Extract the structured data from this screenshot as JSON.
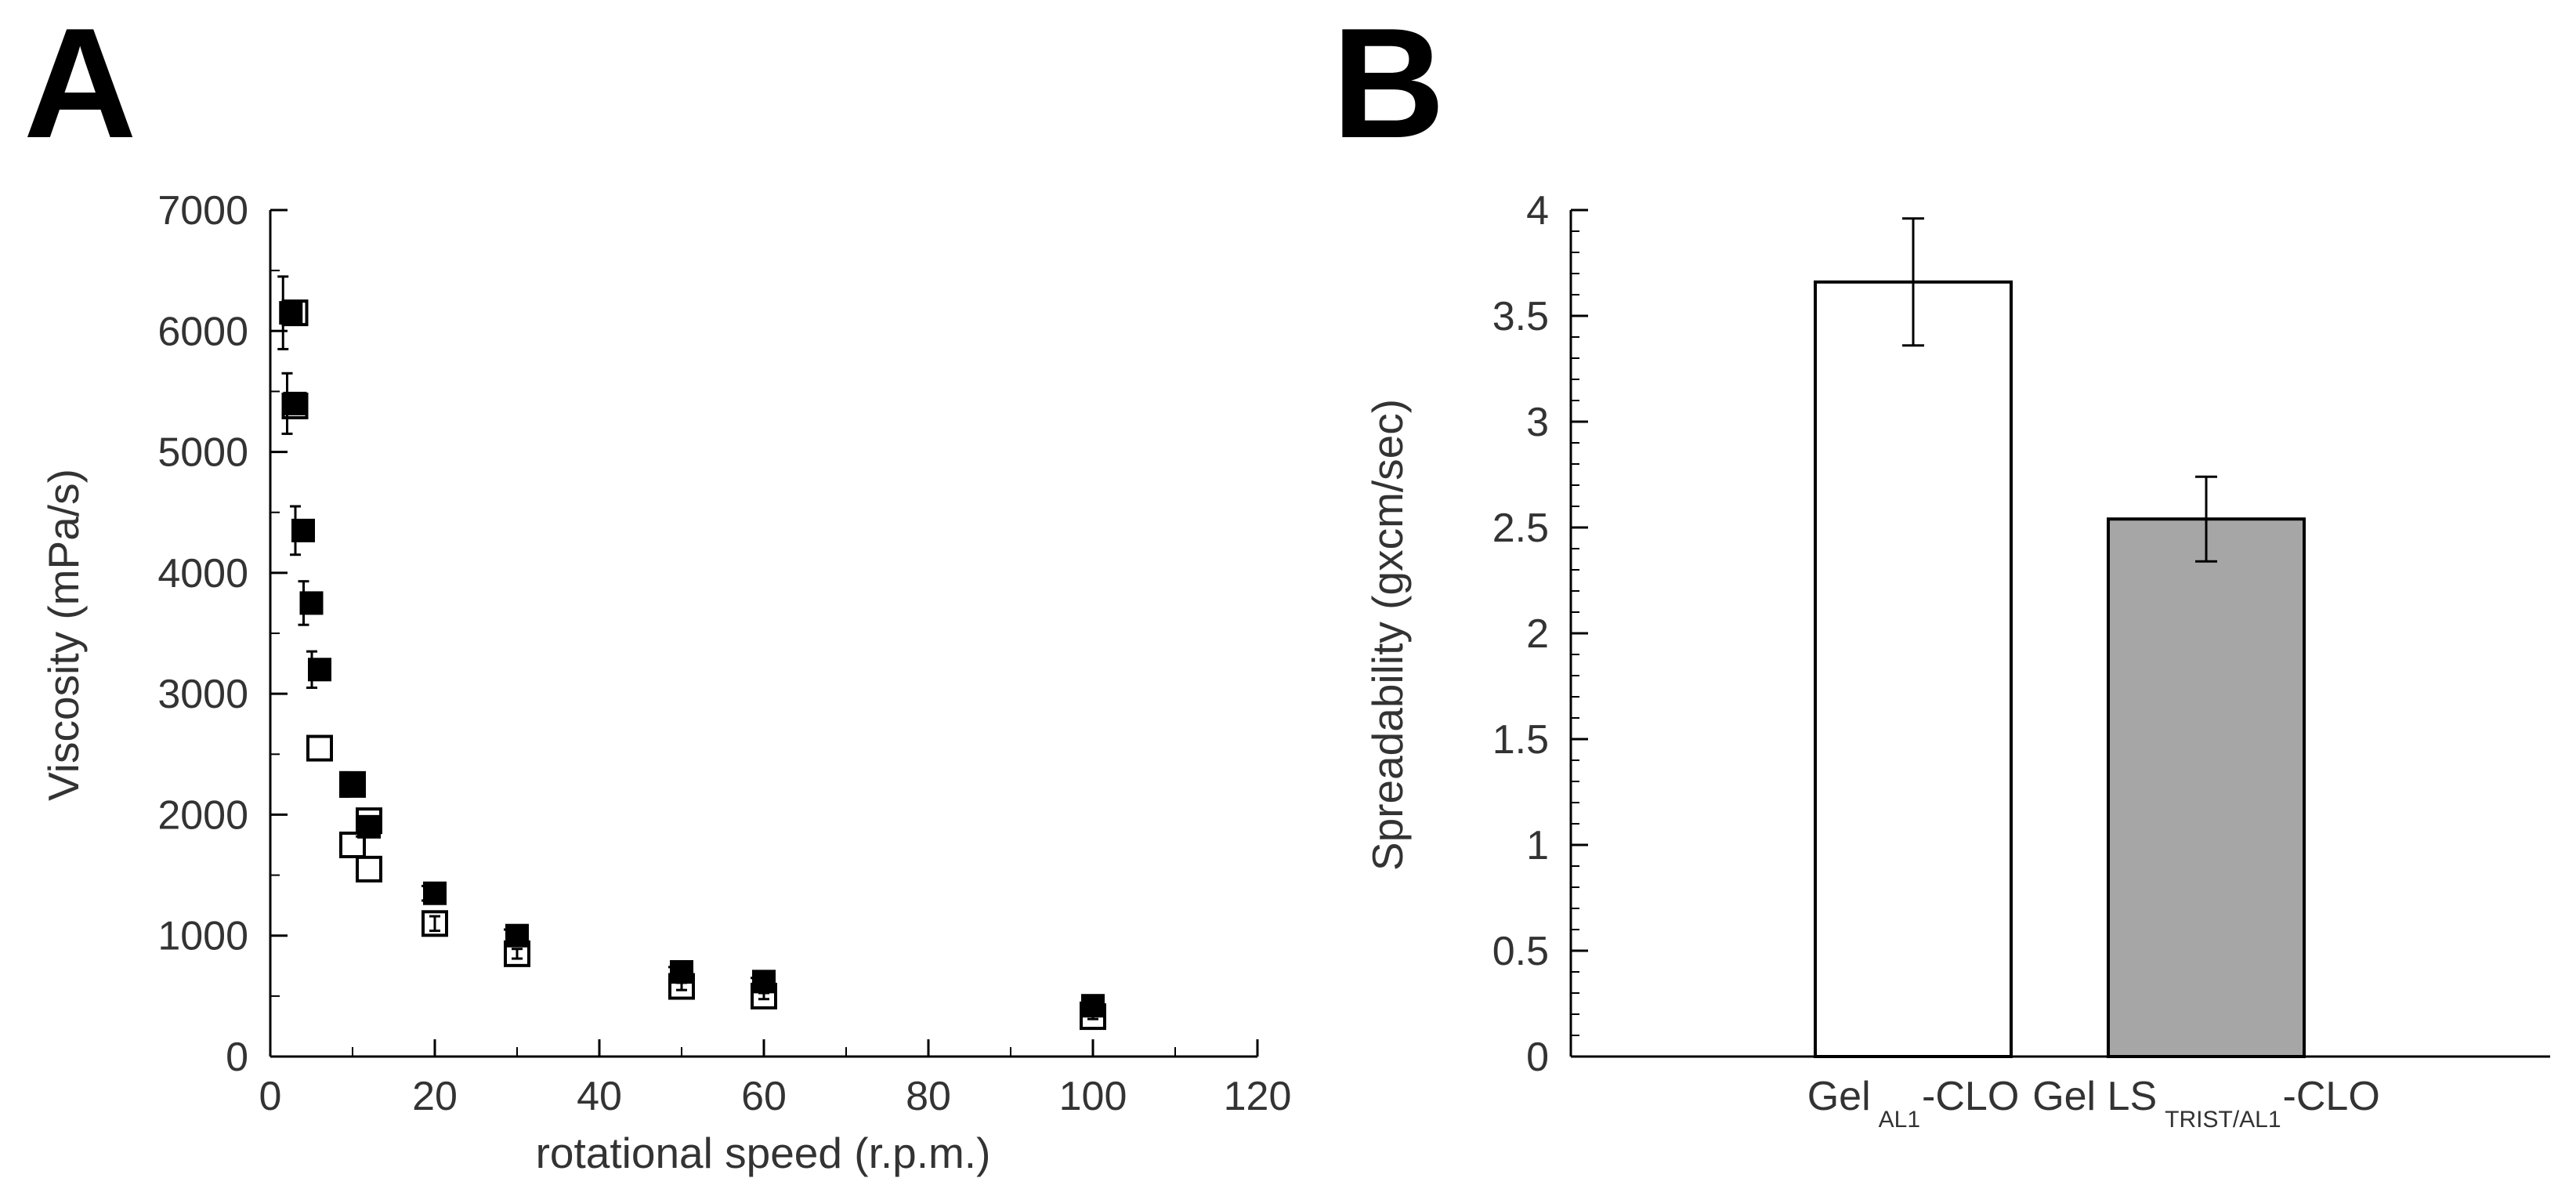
{
  "chart_data": [
    {
      "panel_label": "A",
      "type": "scatter",
      "xlabel": "rotational speed (r.p.m.)",
      "ylabel": "Viscosity (mPa/s)",
      "xlim": [
        0,
        120
      ],
      "ylim": [
        0,
        7000
      ],
      "xticks": [
        0,
        20,
        40,
        60,
        80,
        100,
        120
      ],
      "yticks": [
        0,
        1000,
        2000,
        3000,
        4000,
        5000,
        6000,
        7000
      ],
      "xtick_labels": [
        "0",
        "20",
        "40",
        "60",
        "80",
        "100",
        "120"
      ],
      "ytick_labels": [
        "0",
        "1000",
        "2000",
        "3000",
        "4000",
        "5000",
        "6000",
        "7000"
      ],
      "grid": false,
      "series": [
        {
          "marker": "filled-square",
          "color": "#000000",
          "points": [
            {
              "x": 2.5,
              "y": 6150,
              "err": 300
            },
            {
              "x": 3,
              "y": 5400,
              "err": 250
            },
            {
              "x": 4,
              "y": 4350,
              "err": 200
            },
            {
              "x": 5,
              "y": 3750,
              "err": 180
            },
            {
              "x": 6,
              "y": 3200,
              "err": 150
            },
            {
              "x": 10,
              "y": 2250,
              "err": 100
            },
            {
              "x": 12,
              "y": 1900,
              "err": 80
            },
            {
              "x": 20,
              "y": 1350,
              "err": 60
            },
            {
              "x": 30,
              "y": 1000,
              "err": 50
            },
            {
              "x": 50,
              "y": 700,
              "err": 40
            },
            {
              "x": 60,
              "y": 620,
              "err": 30
            },
            {
              "x": 100,
              "y": 420,
              "err": 25
            }
          ]
        },
        {
          "marker": "open-square",
          "color": "#000000",
          "points": [
            {
              "x": 3,
              "y": 6150,
              "err": 0
            },
            {
              "x": 3,
              "y": 5380,
              "err": 0
            },
            {
              "x": 6,
              "y": 2550,
              "err": 0
            },
            {
              "x": 10,
              "y": 2250,
              "err": 0
            },
            {
              "x": 10,
              "y": 1750,
              "err": 0
            },
            {
              "x": 12,
              "y": 1950,
              "err": 0
            },
            {
              "x": 12,
              "y": 1550,
              "err": 0
            },
            {
              "x": 20,
              "y": 1100,
              "err": 60
            },
            {
              "x": 30,
              "y": 850,
              "err": 40
            },
            {
              "x": 50,
              "y": 580,
              "err": 30
            },
            {
              "x": 60,
              "y": 500,
              "err": 25
            },
            {
              "x": 100,
              "y": 330,
              "err": 20
            }
          ]
        }
      ]
    },
    {
      "panel_label": "B",
      "type": "bar",
      "ylabel": "Spreadability (gxcm/sec)",
      "xlabel": "",
      "categories": [
        {
          "main": "Gel",
          "sub": "AL1",
          "suffix": "-CLO"
        },
        {
          "main": "Gel LS",
          "sub": "TRIST/AL1",
          "suffix": "-CLO"
        }
      ],
      "values": [
        3.66,
        2.54
      ],
      "errors": [
        0.3,
        0.2
      ],
      "bar_colors": [
        "#ffffff",
        "#a6a6a6"
      ],
      "ylim": [
        0,
        4
      ],
      "yticks": [
        0,
        0.5,
        1,
        1.5,
        2,
        2.5,
        3,
        3.5,
        4
      ],
      "ytick_labels": [
        "0",
        "0.5",
        "1",
        "1.5",
        "2",
        "2.5",
        "3",
        "3.5",
        "4"
      ],
      "grid": false
    }
  ]
}
